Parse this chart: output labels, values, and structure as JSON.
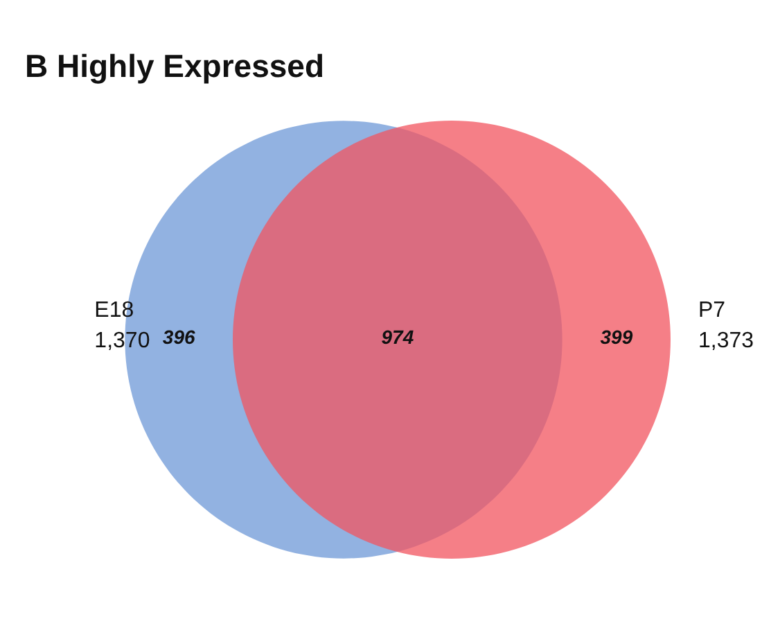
{
  "chart_data": {
    "type": "other",
    "title": "B Highly Expressed",
    "categories": [
      "E18",
      "P7"
    ],
    "values": [
      1370,
      1373
    ],
    "value_labels": [
      "1,370",
      "1,373"
    ],
    "colors": [
      "#7fa5dc",
      "#f2545f"
    ],
    "annotations": [
      "396",
      "974",
      "399"
    ]
  }
}
